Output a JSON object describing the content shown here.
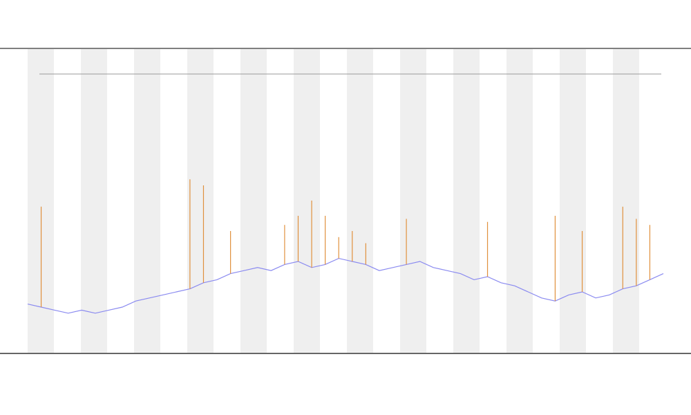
{
  "chart_data": {
    "type": "line",
    "categories": [
      null,
      null,
      null,
      null,
      null,
      null,
      null,
      null,
      null,
      null,
      null,
      null,
      null,
      null,
      null,
      null,
      null,
      null,
      null,
      null,
      null,
      null,
      null,
      null,
      null,
      null,
      null,
      null,
      null,
      null,
      null,
      null,
      null,
      null,
      null,
      null,
      null,
      null,
      null,
      null,
      null,
      null,
      null,
      null,
      null,
      null,
      null,
      null
    ],
    "ylim": [
      0,
      100
    ],
    "series": [
      {
        "color": "#8a8af0",
        "values": [
          16,
          15,
          14,
          13,
          14,
          13,
          14,
          15,
          17,
          18,
          19,
          20,
          21,
          23,
          24,
          26,
          27,
          28,
          27,
          29,
          30,
          28,
          29,
          31,
          30,
          29,
          27,
          28,
          29,
          30,
          28,
          27,
          26,
          24,
          25,
          23,
          22,
          20,
          18,
          17,
          19,
          20,
          18,
          19,
          21,
          22,
          24,
          26
        ]
      },
      {
        "color": "#e0903c",
        "values": [
          null,
          48,
          null,
          null,
          null,
          null,
          null,
          null,
          null,
          null,
          null,
          null,
          57,
          55,
          null,
          40,
          null,
          null,
          null,
          42,
          45,
          50,
          45,
          38,
          40,
          36,
          null,
          null,
          44,
          null,
          null,
          null,
          null,
          null,
          43,
          null,
          null,
          null,
          null,
          45,
          null,
          40,
          null,
          null,
          48,
          44,
          42,
          null
        ]
      }
    ]
  }
}
